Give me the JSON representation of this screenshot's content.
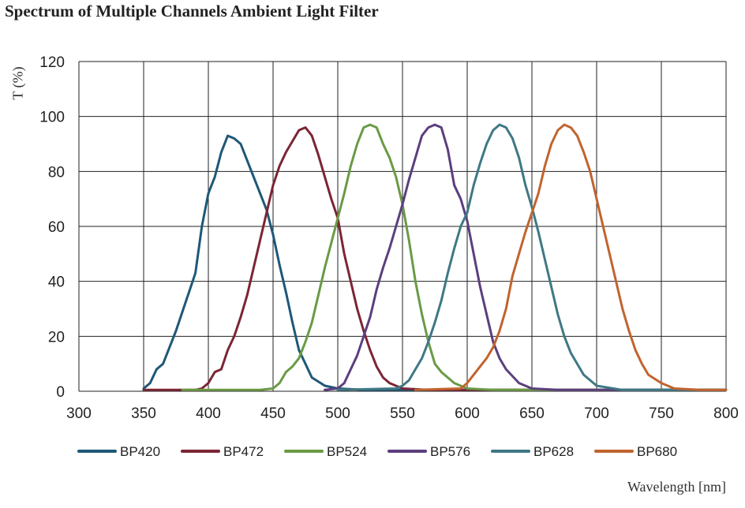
{
  "chart_data": {
    "type": "line",
    "title": "Spectrum of Multiple Channels Ambient Light Filter",
    "xlabel": "Wavelength [nm]",
    "ylabel": "T (%)",
    "xlim": [
      300,
      800
    ],
    "ylim": [
      0,
      120
    ],
    "xticks": [
      300,
      350,
      400,
      450,
      500,
      550,
      600,
      650,
      700,
      750,
      800
    ],
    "yticks": [
      0,
      20,
      40,
      60,
      80,
      100,
      120
    ],
    "grid": true,
    "legend": "bottom",
    "series": [
      {
        "name": "BP420",
        "color": "#1e5878",
        "x": [
          350,
          355,
          360,
          365,
          370,
          375,
          380,
          385,
          390,
          395,
          400,
          405,
          410,
          415,
          420,
          425,
          430,
          435,
          440,
          445,
          450,
          455,
          460,
          465,
          470,
          475,
          480,
          490,
          500,
          520,
          560,
          800
        ],
        "y": [
          1,
          3,
          8,
          10,
          16,
          22,
          29,
          36,
          43,
          60,
          72,
          78,
          87,
          93,
          92,
          90,
          84,
          78,
          72,
          66,
          57,
          46,
          36,
          25,
          15,
          10,
          5,
          2,
          1,
          0.5,
          0.5,
          0.5
        ]
      },
      {
        "name": "BP472",
        "color": "#7b2535",
        "x": [
          350,
          390,
          395,
          400,
          405,
          410,
          415,
          420,
          425,
          430,
          435,
          440,
          445,
          450,
          455,
          460,
          465,
          470,
          475,
          480,
          485,
          490,
          495,
          500,
          505,
          510,
          515,
          520,
          525,
          530,
          535,
          540,
          550,
          570,
          800
        ],
        "y": [
          0.5,
          0.5,
          1,
          3,
          7,
          8,
          15,
          20,
          27,
          35,
          45,
          55,
          65,
          75,
          82,
          87,
          91,
          95,
          96,
          93,
          86,
          78,
          70,
          63,
          50,
          40,
          30,
          22,
          15,
          9,
          5,
          3,
          1,
          0.5,
          0.5
        ]
      },
      {
        "name": "BP524",
        "color": "#6a9a45",
        "x": [
          380,
          440,
          450,
          455,
          460,
          465,
          470,
          475,
          480,
          485,
          490,
          495,
          500,
          505,
          510,
          515,
          520,
          525,
          530,
          535,
          540,
          545,
          550,
          555,
          560,
          565,
          570,
          575,
          580,
          590,
          600,
          620,
          800
        ],
        "y": [
          0.5,
          0.5,
          1,
          3,
          7,
          9,
          12,
          18,
          25,
          35,
          45,
          54,
          63,
          72,
          82,
          90,
          96,
          97,
          96,
          90,
          85,
          78,
          68,
          55,
          40,
          28,
          18,
          10,
          7,
          3,
          1,
          0.5,
          0.5
        ]
      },
      {
        "name": "BP576",
        "color": "#5b3f7e",
        "x": [
          490,
          500,
          505,
          510,
          515,
          520,
          525,
          530,
          535,
          540,
          545,
          550,
          555,
          560,
          565,
          570,
          575,
          580,
          585,
          590,
          595,
          600,
          605,
          610,
          615,
          620,
          625,
          630,
          640,
          650,
          670,
          800
        ],
        "y": [
          0.5,
          1,
          3,
          8,
          13,
          20,
          27,
          37,
          45,
          52,
          60,
          68,
          77,
          85,
          93,
          96,
          97,
          96,
          88,
          75,
          70,
          62,
          50,
          38,
          28,
          18,
          12,
          8,
          3,
          1,
          0.5,
          0.5
        ]
      },
      {
        "name": "BP628",
        "color": "#3f7884",
        "x": [
          500,
          545,
          550,
          555,
          560,
          565,
          570,
          575,
          580,
          585,
          590,
          595,
          600,
          605,
          610,
          615,
          620,
          625,
          630,
          635,
          640,
          645,
          650,
          655,
          660,
          665,
          670,
          675,
          680,
          690,
          700,
          720,
          800
        ],
        "y": [
          0.5,
          1,
          2,
          4,
          8,
          12,
          18,
          25,
          33,
          43,
          52,
          60,
          65,
          75,
          83,
          90,
          95,
          97,
          96,
          92,
          85,
          75,
          67,
          58,
          48,
          38,
          28,
          20,
          14,
          6,
          2,
          0.5,
          0.5
        ]
      },
      {
        "name": "BP680",
        "color": "#c0642f",
        "x": [
          560,
          595,
          600,
          605,
          610,
          615,
          620,
          625,
          630,
          635,
          640,
          645,
          650,
          655,
          660,
          665,
          670,
          675,
          680,
          685,
          690,
          695,
          700,
          705,
          710,
          715,
          720,
          725,
          730,
          735,
          740,
          750,
          760,
          780,
          800
        ],
        "y": [
          0.5,
          1,
          3,
          6,
          9,
          12,
          16,
          22,
          30,
          42,
          50,
          58,
          65,
          72,
          82,
          90,
          95,
          97,
          96,
          93,
          87,
          80,
          70,
          60,
          50,
          40,
          30,
          22,
          15,
          10,
          6,
          3,
          1,
          0.5,
          0.5
        ]
      }
    ]
  }
}
